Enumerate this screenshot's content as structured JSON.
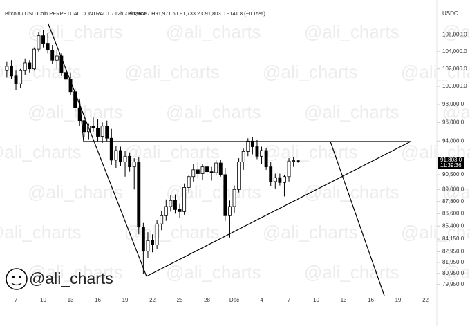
{
  "chart_data": {
    "type": "candlestick",
    "title": "Bitcoin / USD Coin PERPETUAL CONTRACT · 12h · Binance",
    "ohlc_legend": "O91,944.7 H91,971.6 L91,733.2 C91,803.0 −141.8 (−0.15%)",
    "currency": "USDC",
    "watermark": "@ali_charts",
    "countdown": "11:39:36",
    "log_scale": true,
    "up_color": "#ffffff",
    "down_color": "#000000",
    "ylim": [
      78200,
      109400
    ],
    "yticks": [
      {
        "value": 106000,
        "label": "106,000.0"
      },
      {
        "value": 104000,
        "label": "104,000.0"
      },
      {
        "value": 102000,
        "label": "102,000.0"
      },
      {
        "value": 100000,
        "label": "100,000.0"
      },
      {
        "value": 98000,
        "label": "98,000.0"
      },
      {
        "value": 96000,
        "label": "96,000.0"
      },
      {
        "value": 94000,
        "label": "94,000.0"
      },
      {
        "value": 90500,
        "label": "90,500.0"
      },
      {
        "value": 89000,
        "label": "89,000.0"
      },
      {
        "value": 87800,
        "label": "87,800.0"
      },
      {
        "value": 86600,
        "label": "86,600.0"
      },
      {
        "value": 85400,
        "label": "85,400.0"
      },
      {
        "value": 84150,
        "label": "84,150.0"
      },
      {
        "value": 82950,
        "label": "82,950.0"
      },
      {
        "value": 81950,
        "label": "81,950.0"
      },
      {
        "value": 80950,
        "label": "80,950.0"
      },
      {
        "value": 79950,
        "label": "79,950.0"
      }
    ],
    "last_price": {
      "value": 91803.0,
      "label": "91,803.0"
    },
    "categories": [
      null,
      null,
      null,
      "7",
      null,
      null,
      null,
      null,
      null,
      "10",
      null,
      null,
      null,
      null,
      null,
      "13",
      null,
      null,
      null,
      null,
      null,
      "16",
      null,
      null,
      null,
      null,
      null,
      "19",
      null,
      null,
      null,
      null,
      null,
      "22",
      null,
      null,
      null,
      null,
      null,
      "25",
      null,
      null,
      null,
      null,
      null,
      "28",
      null,
      null,
      null,
      null,
      null,
      "Dec",
      null,
      null,
      null,
      null,
      null,
      "4",
      null,
      null,
      null,
      null,
      null,
      "7",
      null,
      null,
      null,
      null,
      null,
      "10",
      null,
      null,
      null,
      null,
      null,
      "13",
      null,
      null,
      null,
      null,
      null,
      "16",
      null,
      null,
      null,
      null,
      null,
      "19",
      null,
      null,
      null,
      null,
      null,
      "22",
      null,
      null
    ],
    "open": [
      null,
      101800,
      102300,
      101200,
      100300,
      101800,
      102700,
      102000,
      104300,
      105900,
      105000,
      104200,
      103000,
      103500,
      101600,
      100800,
      99400,
      97600,
      96200,
      95000,
      95600,
      95400,
      94500,
      95600,
      94300,
      92000,
      93000,
      91800,
      92400,
      91300,
      91800,
      85300,
      83000,
      84000,
      83600,
      85600,
      86400,
      87300,
      87900,
      87000,
      86800,
      89200,
      90300,
      91000,
      90600,
      91300,
      90800,
      90700,
      91700,
      90500,
      86400,
      87300,
      89000,
      91800,
      92900,
      94000,
      93400,
      92400,
      93000,
      91300,
      89800,
      90200,
      89700,
      90300,
      91900,
      91944.7,
      null,
      null,
      null,
      null,
      null,
      null,
      null,
      null,
      null,
      null,
      null,
      null,
      null,
      null,
      null,
      null,
      null,
      null,
      null,
      null,
      null,
      null,
      null,
      null,
      null,
      null,
      null,
      null,
      null,
      null
    ],
    "high": [
      null,
      102800,
      103000,
      101800,
      102000,
      103200,
      103000,
      104500,
      106300,
      106600,
      106200,
      104800,
      104200,
      103800,
      102400,
      101600,
      99800,
      98300,
      96800,
      95900,
      96600,
      96400,
      96000,
      96200,
      95300,
      93500,
      93400,
      93000,
      92800,
      92200,
      92300,
      85700,
      84800,
      84600,
      86000,
      86900,
      88000,
      88400,
      88500,
      87600,
      89600,
      90500,
      91600,
      91800,
      91600,
      91800,
      91300,
      92000,
      92000,
      91200,
      87900,
      89400,
      92200,
      93200,
      94300,
      94400,
      94100,
      93400,
      93300,
      91800,
      90600,
      90600,
      90500,
      92200,
      92300,
      91971.6,
      null,
      null,
      null,
      null,
      null,
      null,
      null,
      null,
      null,
      null,
      null,
      null,
      null,
      null,
      null,
      null,
      null,
      null,
      null,
      null,
      null,
      null,
      null,
      null,
      null,
      null,
      null,
      null,
      null,
      null
    ],
    "low": [
      null,
      101000,
      100800,
      99600,
      99800,
      101300,
      101600,
      101800,
      104000,
      104500,
      103800,
      102600,
      102000,
      101200,
      100300,
      99000,
      97200,
      95600,
      94400,
      94200,
      95000,
      94000,
      93800,
      94000,
      91500,
      91200,
      91400,
      90300,
      90800,
      89000,
      84600,
      80900,
      82400,
      82900,
      83200,
      85000,
      85900,
      86800,
      86600,
      86200,
      86500,
      88700,
      89800,
      90100,
      90000,
      90500,
      89900,
      90400,
      90300,
      85900,
      84300,
      86700,
      88700,
      91000,
      92400,
      92600,
      92100,
      91600,
      91000,
      89300,
      89100,
      89400,
      88300,
      89800,
      91300,
      91733.2,
      null,
      null,
      null,
      null,
      null,
      null,
      null,
      null,
      null,
      null,
      null,
      null,
      null,
      null,
      null,
      null,
      null,
      null,
      null,
      null,
      null,
      null,
      null,
      null,
      null,
      null,
      null,
      null,
      null,
      null
    ],
    "close": [
      null,
      102300,
      101200,
      100300,
      101800,
      102700,
      102000,
      104300,
      105900,
      105000,
      104200,
      103000,
      103500,
      101600,
      100800,
      99400,
      97600,
      96200,
      95000,
      95600,
      95400,
      94500,
      95600,
      94300,
      92000,
      93000,
      91800,
      92400,
      91300,
      91800,
      85300,
      83000,
      84000,
      83600,
      85600,
      86400,
      87300,
      87900,
      87000,
      86800,
      89200,
      90300,
      91000,
      90600,
      91300,
      90800,
      90700,
      91700,
      90500,
      86400,
      87300,
      89000,
      91800,
      92900,
      94000,
      93400,
      92400,
      93000,
      91300,
      89800,
      90200,
      89700,
      90300,
      91900,
      91944.7,
      91803.0,
      null,
      null,
      null,
      null,
      null,
      null,
      null,
      null,
      null,
      null,
      null,
      null,
      null,
      null,
      null,
      null,
      null,
      null,
      null,
      null,
      null,
      null,
      null,
      null,
      null,
      null,
      null,
      null,
      null,
      null
    ]
  }
}
